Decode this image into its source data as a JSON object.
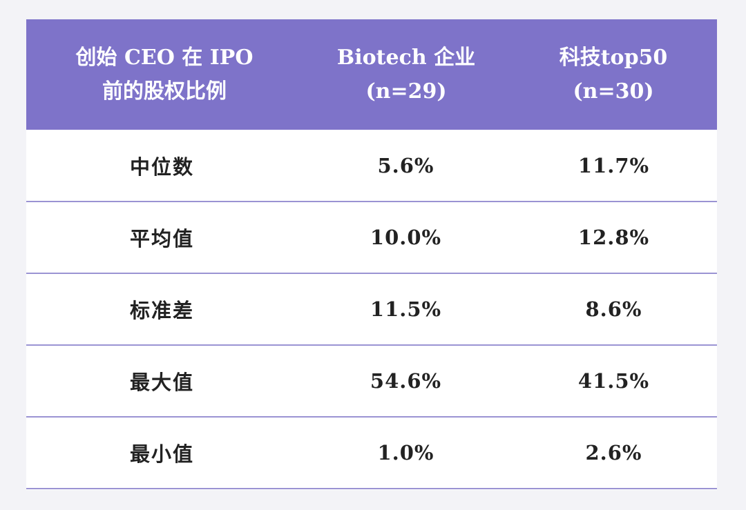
{
  "table": {
    "headers": [
      [
        "创始 CEO 在 IPO",
        "前的股权比例"
      ],
      [
        "Biotech 企业",
        "(n=29)"
      ],
      [
        "科技top50",
        "(n=30)"
      ]
    ],
    "rows": [
      {
        "label": "中位数",
        "biotech": "5.6%",
        "tech": "11.7%"
      },
      {
        "label": "平均值",
        "biotech": "10.0%",
        "tech": "12.8%"
      },
      {
        "label": "标准差",
        "biotech": "11.5%",
        "tech": "8.6%"
      },
      {
        "label": "最大值",
        "biotech": "54.6%",
        "tech": "41.5%"
      },
      {
        "label": "最小值",
        "biotech": "1.0%",
        "tech": "2.6%"
      }
    ]
  },
  "colors": {
    "header_bg": "#7e73c9",
    "header_text": "#ffffff",
    "row_divider": "#9a93d3",
    "page_bg": "#f3f3f7"
  }
}
